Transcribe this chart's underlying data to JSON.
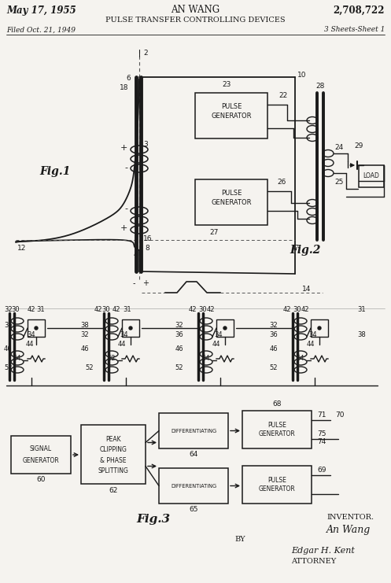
{
  "bg_color": "#f5f3ef",
  "line_color": "#1a1a1a",
  "header": {
    "date": "May 17, 1955",
    "inventor": "AN WANG",
    "patent_num": "2,708,722",
    "title": "PULSE TRANSFER CONTROLLING DEVICES",
    "filed": "Filed Oct. 21, 1949",
    "sheets": "3 Sheets-Sheet 1"
  },
  "fig1_label": "Fig.1",
  "fig2_label": "Fig.2",
  "fig3_label": "Fig.3",
  "inventor_label": "INVENTOR.",
  "inventor_name": "An Wang",
  "by_label": "BY",
  "attorney_label": "ATTORNEY"
}
